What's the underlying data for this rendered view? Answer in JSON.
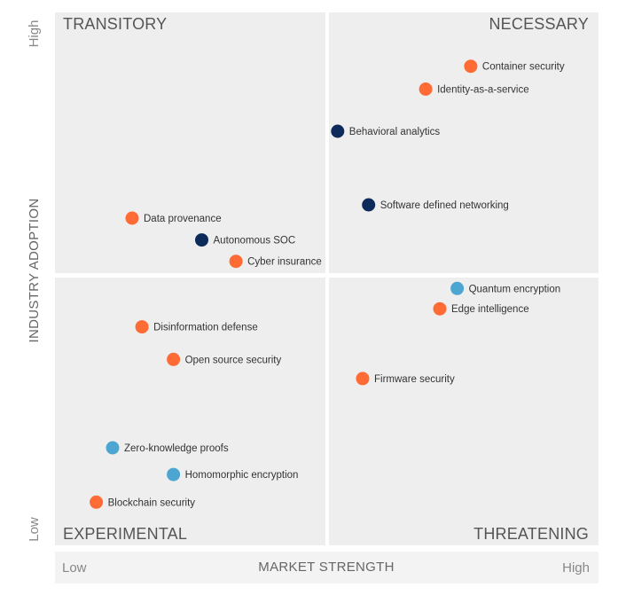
{
  "chart_data": {
    "type": "scatter",
    "title": "",
    "xlabel": "MARKET STRENGTH",
    "ylabel": "INDUSTRY ADOPTION",
    "x_low": "Low",
    "x_high": "High",
    "y_low": "Low",
    "y_high": "High",
    "xlim": [
      0,
      100
    ],
    "ylim": [
      0,
      100
    ],
    "quadrants": {
      "top_left": "TRANSITORY",
      "top_right": "NECESSARY",
      "bottom_left": "EXPERIMENTAL",
      "bottom_right": "THREATENING"
    },
    "colors": {
      "orange": "#ff6b35",
      "navy": "#0d2b5a",
      "light_blue": "#4da6d1",
      "panel": "#eeeeee"
    },
    "points": [
      {
        "name": "Container security",
        "x": 76.5,
        "y": 89.9,
        "color": "orange"
      },
      {
        "name": "Identity-as-a-service",
        "x": 68.2,
        "y": 85.6,
        "color": "orange"
      },
      {
        "name": "Behavioral analytics",
        "x": 52.0,
        "y": 77.7,
        "color": "navy"
      },
      {
        "name": "Software defined networking",
        "x": 57.7,
        "y": 63.9,
        "color": "navy"
      },
      {
        "name": "Data provenance",
        "x": 14.2,
        "y": 61.4,
        "color": "orange"
      },
      {
        "name": "Autonomous SOC",
        "x": 27.0,
        "y": 57.3,
        "color": "navy"
      },
      {
        "name": "Cyber insurance",
        "x": 33.3,
        "y": 53.3,
        "color": "orange"
      },
      {
        "name": "Quantum encryption",
        "x": 74.0,
        "y": 48.2,
        "color": "light_blue"
      },
      {
        "name": "Edge intelligence",
        "x": 70.8,
        "y": 44.4,
        "color": "orange"
      },
      {
        "name": "Disinformation defense",
        "x": 16.0,
        "y": 41.0,
        "color": "orange"
      },
      {
        "name": "Open source security",
        "x": 21.8,
        "y": 34.9,
        "color": "orange"
      },
      {
        "name": "Firmware security",
        "x": 56.6,
        "y": 31.3,
        "color": "orange"
      },
      {
        "name": "Zero-knowledge proofs",
        "x": 10.6,
        "y": 18.3,
        "color": "light_blue"
      },
      {
        "name": "Homomorphic encryption",
        "x": 21.8,
        "y": 13.3,
        "color": "light_blue"
      },
      {
        "name": "Blockchain security",
        "x": 7.6,
        "y": 8.1,
        "color": "orange"
      }
    ]
  }
}
